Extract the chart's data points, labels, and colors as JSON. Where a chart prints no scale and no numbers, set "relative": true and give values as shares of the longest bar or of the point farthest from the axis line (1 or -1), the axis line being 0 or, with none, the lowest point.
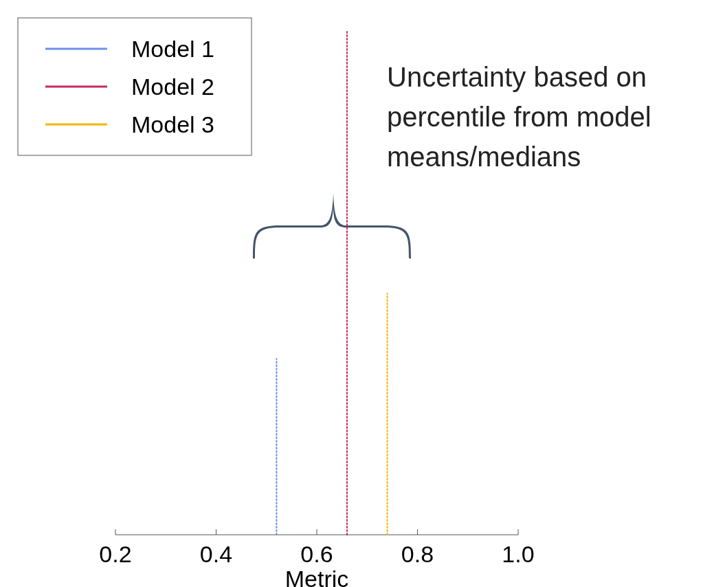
{
  "chart_data": {
    "type": "line",
    "xlabel": "Metric",
    "relative": true,
    "xlim": [
      0.2,
      1.0
    ],
    "xticks": [
      {
        "value": 0.2,
        "label": "0.2"
      },
      {
        "value": 0.4,
        "label": "0.4"
      },
      {
        "value": 0.6,
        "label": "0.6"
      },
      {
        "value": 0.8,
        "label": "0.8"
      },
      {
        "value": 1.0,
        "label": "1.0"
      }
    ],
    "series": [
      {
        "name": "Model 1",
        "color": "#6f8ff0",
        "x": [
          0.52,
          0.52
        ],
        "values": [
          0,
          0.35
        ]
      },
      {
        "name": "Model 2",
        "color": "#c8285a",
        "x": [
          0.66,
          0.66
        ],
        "values": [
          0,
          1
        ]
      },
      {
        "name": "Model 3",
        "color": "#f5b400",
        "x": [
          0.74,
          0.74
        ],
        "values": [
          0,
          0.48
        ]
      }
    ],
    "line_style": "dotted",
    "legend": "top left",
    "grid": false,
    "tick_labels": "x",
    "annotations": [
      "Uncertainty based on percentile from model means/medians"
    ]
  }
}
